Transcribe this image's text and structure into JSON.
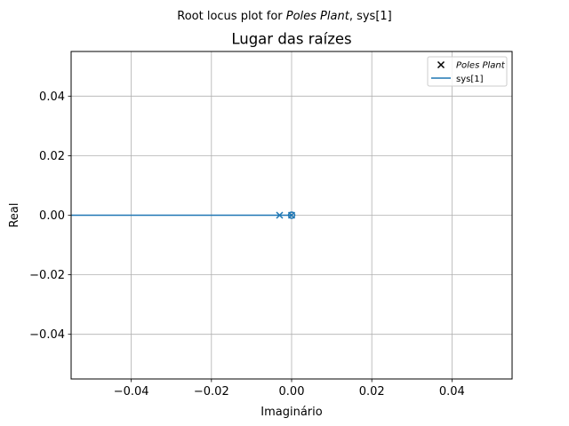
{
  "chart_data": {
    "type": "line",
    "suptitle": {
      "prefix": "Root locus plot for ",
      "italic": "Poles Plant",
      "suffix": ", sys[1]"
    },
    "title": "Lugar das raízes",
    "xlabel": "Imaginário",
    "ylabel": "Real",
    "xlim": [
      -0.055,
      0.055
    ],
    "ylim": [
      -0.055,
      0.055
    ],
    "grid": true,
    "legend_position": "top-right",
    "xticks": [
      {
        "value": -0.04,
        "label": "−0.04"
      },
      {
        "value": -0.02,
        "label": "−0.02"
      },
      {
        "value": 0.0,
        "label": "0.00"
      },
      {
        "value": 0.02,
        "label": "0.02"
      },
      {
        "value": 0.04,
        "label": "0.04"
      }
    ],
    "yticks": [
      {
        "value": 0.04,
        "label": "0.04"
      },
      {
        "value": 0.02,
        "label": "0.02"
      },
      {
        "value": 0.0,
        "label": "0.00"
      },
      {
        "value": -0.02,
        "label": "−0.02"
      },
      {
        "value": -0.04,
        "label": "−0.04"
      }
    ],
    "legend": [
      {
        "label": "Poles Plant",
        "italic": true,
        "marker": "x",
        "color": "#000000"
      },
      {
        "label": "sys[1]",
        "italic": false,
        "marker": "line",
        "color": "#1f77b4"
      }
    ],
    "series": [
      {
        "name": "sys[1]",
        "color": "#1f77b4",
        "line": {
          "x": [
            -0.06,
            0.0
          ],
          "y": [
            0.0,
            0.0
          ]
        },
        "poles": [
          {
            "x": -0.003,
            "y": 0.0
          },
          {
            "x": 0.0,
            "y": 0.0
          }
        ],
        "zeros": [
          {
            "x": 0.0,
            "y": 0.0
          }
        ]
      }
    ]
  }
}
